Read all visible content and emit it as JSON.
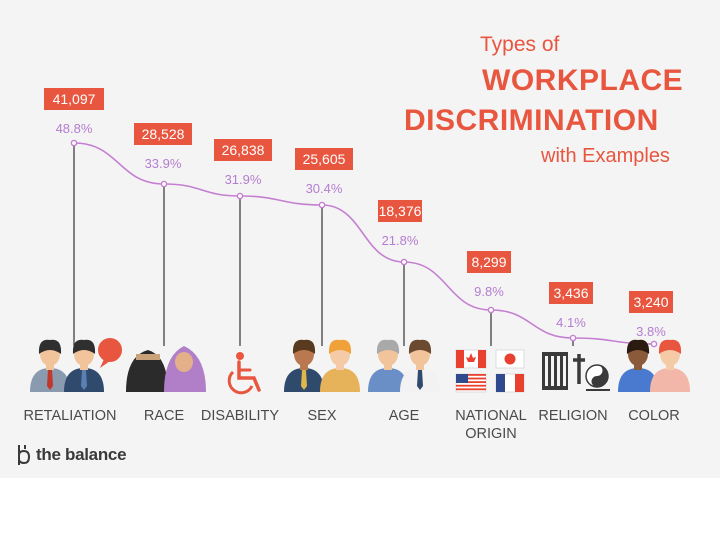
{
  "title": {
    "line1": "Types of",
    "line2": "WORKPLACE",
    "line3": "DISCRIMINATION",
    "line4": "with Examples"
  },
  "brand": {
    "name": "the balance"
  },
  "colors": {
    "accent": "#e8563f",
    "line": "#c47fd1",
    "percent": "#b57dd0",
    "label": "#4a4a4a",
    "background": "#f4f4f4"
  },
  "chart_data": {
    "type": "line",
    "categories": [
      "RETALIATION",
      "RACE",
      "DISABILITY",
      "SEX",
      "AGE",
      "NATIONAL ORIGIN",
      "RELIGION",
      "COLOR"
    ],
    "category_lines": [
      [
        "RETALIATION"
      ],
      [
        "RACE"
      ],
      [
        "DISABILITY"
      ],
      [
        "SEX"
      ],
      [
        "AGE"
      ],
      [
        "NATIONAL",
        "ORIGIN"
      ],
      [
        "RELIGION"
      ],
      [
        "COLOR"
      ]
    ],
    "series": [
      {
        "values": [
          48.8,
          33.9,
          31.9,
          30.4,
          21.8,
          9.8,
          4.1,
          3.8
        ],
        "percent_labels": [
          "48.8%",
          "33.9%",
          "31.9%",
          "30.4%",
          "21.8%",
          "9.8%",
          "4.1%",
          "3.8%"
        ]
      }
    ],
    "count_labels": [
      "41,097",
      "28,528",
      "26,838",
      "25,605",
      "18,376",
      "8,299",
      "3,436",
      "3,240"
    ],
    "icons": [
      "coworkers-arguing-icon",
      "veiled-women-icon",
      "wheelchair-icon",
      "man-woman-icon",
      "old-young-men-icon",
      "country-flags-icon",
      "religious-symbols-icon",
      "diverse-people-icon"
    ],
    "ylim": [
      0,
      55
    ],
    "grid": false,
    "legend": "none"
  }
}
